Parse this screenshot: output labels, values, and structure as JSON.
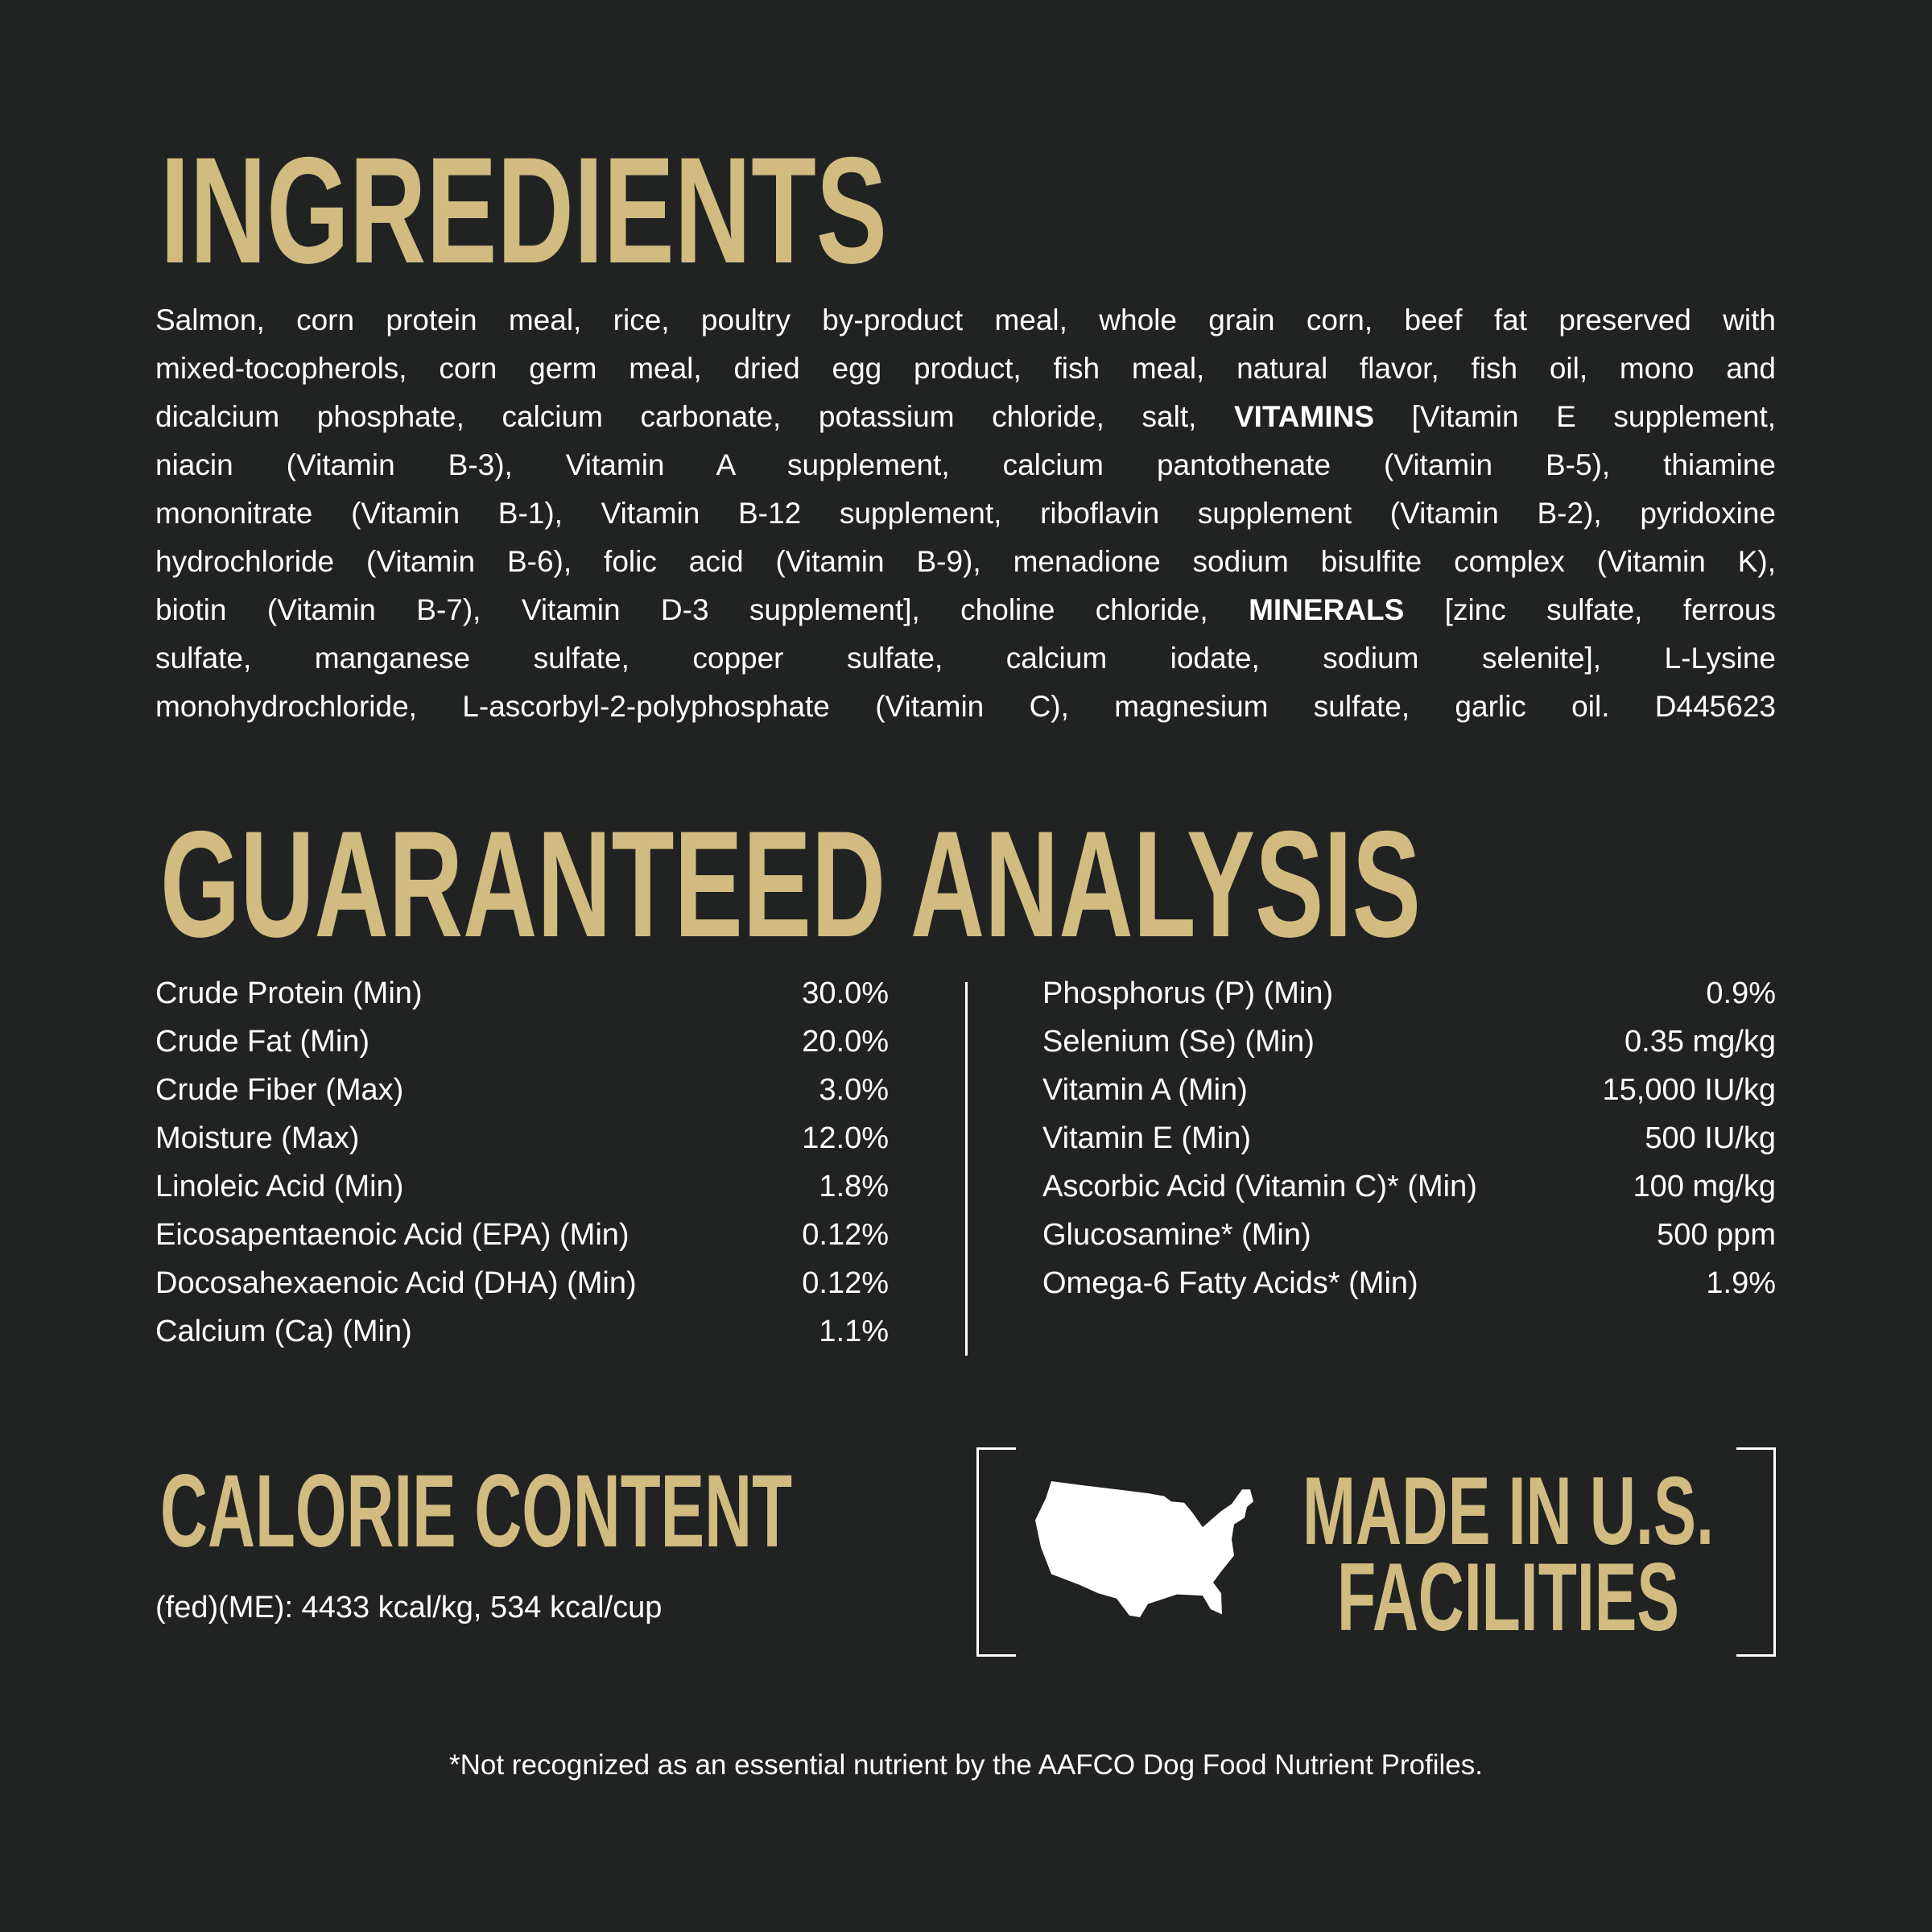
{
  "colors": {
    "background": "#212322",
    "heading": "#d1bb81",
    "text": "#ffffff"
  },
  "ingredients": {
    "title": "INGREDIENTS",
    "lines": [
      [
        {
          "t": "Salmon, corn protein meal, rice, poultry by-product meal, whole grain corn, beef fat preserved with"
        }
      ],
      [
        {
          "t": "mixed-tocopherols, corn germ meal, dried egg product, fish meal, natural flavor, fish oil, mono and"
        }
      ],
      [
        {
          "t": "dicalcium phosphate, calcium carbonate, potassium chloride, salt, "
        },
        {
          "t": "VITAMINS",
          "bold": true
        },
        {
          "t": " [Vitamin E supplement,"
        }
      ],
      [
        {
          "t": "niacin (Vitamin B-3), Vitamin A supplement, calcium pantothenate (Vitamin B-5), thiamine"
        }
      ],
      [
        {
          "t": "mononitrate (Vitamin B-1), Vitamin B-12 supplement, riboflavin supplement (Vitamin B-2), pyridoxine"
        }
      ],
      [
        {
          "t": "hydrochloride (Vitamin B-6), folic acid (Vitamin B-9), menadione sodium bisulfite complex (Vitamin K),"
        }
      ],
      [
        {
          "t": "biotin (Vitamin B-7), Vitamin D-3 supplement], choline chloride, "
        },
        {
          "t": "MINERALS",
          "bold": true
        },
        {
          "t": " [zinc sulfate, ferrous"
        }
      ],
      [
        {
          "t": "sulfate, manganese sulfate, copper sulfate, calcium iodate, sodium selenite], L-Lysine"
        }
      ],
      [
        {
          "t": "monohydrochloride, L-ascorbyl-2-polyphosphate (Vitamin C), magnesium sulfate, garlic oil.  D445623"
        }
      ]
    ]
  },
  "analysis": {
    "title": "GUARANTEED ANALYSIS",
    "left": [
      {
        "name": "Crude Protein (Min)",
        "value": "30.0%"
      },
      {
        "name": "Crude Fat (Min)",
        "value": "20.0%"
      },
      {
        "name": "Crude Fiber (Max)",
        "value": "3.0%"
      },
      {
        "name": "Moisture (Max)",
        "value": "12.0%"
      },
      {
        "name": "Linoleic Acid (Min)",
        "value": "1.8%"
      },
      {
        "name": "Eicosapentaenoic Acid (EPA) (Min)",
        "value": "0.12%"
      },
      {
        "name": "Docosahexaenoic Acid (DHA) (Min)",
        "value": "0.12%"
      },
      {
        "name": "Calcium (Ca) (Min)",
        "value": "1.1%"
      }
    ],
    "right": [
      {
        "name": "Phosphorus (P) (Min)",
        "value": "0.9%"
      },
      {
        "name": "Selenium (Se) (Min)",
        "value": "0.35 mg/kg"
      },
      {
        "name": "Vitamin A (Min)",
        "value": "15,000 IU/kg"
      },
      {
        "name": "Vitamin E (Min)",
        "value": "500 IU/kg"
      },
      {
        "name": "Ascorbic Acid (Vitamin C)* (Min)",
        "value": "100 mg/kg"
      },
      {
        "name": "Glucosamine* (Min)",
        "value": "500 ppm"
      },
      {
        "name": "Omega-6 Fatty Acids* (Min)",
        "value": "1.9%"
      }
    ]
  },
  "calorie": {
    "title": "CALORIE CONTENT",
    "text": "(fed)(ME): 4433 kcal/kg,  534 kcal/cup"
  },
  "made_in": {
    "line1": "MADE IN U.S.",
    "line2": "FACILITIES",
    "icon": "us-map-icon"
  },
  "footnote": "*Not recognized as an essential nutrient by the AAFCO Dog Food Nutrient Profiles."
}
